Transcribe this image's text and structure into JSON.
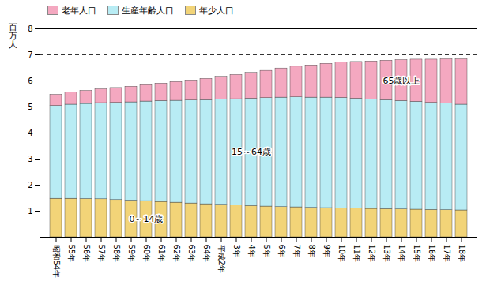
{
  "chart_data": {
    "type": "bar",
    "stacked": true,
    "y_label": "百\n万\n人",
    "categories": [
      "昭和54年",
      "55年",
      "56年",
      "57年",
      "58年",
      "59年",
      "60年",
      "61年",
      "62年",
      "63年",
      "64年",
      "平成2年",
      "3年",
      "4年",
      "5年",
      "6年",
      "7年",
      "8年",
      "9年",
      "10年",
      "11年",
      "12年",
      "13年",
      "14年",
      "15年",
      "16年",
      "17年",
      "18年"
    ],
    "series": [
      {
        "name": "年少人口",
        "color": "#f2d478",
        "values": [
          1.48,
          1.48,
          1.47,
          1.46,
          1.43,
          1.41,
          1.39,
          1.36,
          1.33,
          1.3,
          1.27,
          1.25,
          1.22,
          1.2,
          1.18,
          1.16,
          1.15,
          1.13,
          1.12,
          1.11,
          1.1,
          1.09,
          1.08,
          1.07,
          1.06,
          1.05,
          1.04,
          1.03
        ]
      },
      {
        "name": "生産年齢人口",
        "color": "#b8ecf4",
        "values": [
          3.56,
          3.61,
          3.65,
          3.69,
          3.73,
          3.77,
          3.82,
          3.87,
          3.91,
          3.95,
          3.99,
          4.04,
          4.08,
          4.12,
          4.16,
          4.2,
          4.22,
          4.23,
          4.24,
          4.24,
          4.22,
          4.2,
          4.18,
          4.16,
          4.14,
          4.11,
          4.09,
          4.06
        ]
      },
      {
        "name": "老年人口",
        "color": "#f4a8c0",
        "values": [
          0.43,
          0.47,
          0.5,
          0.53,
          0.57,
          0.6,
          0.63,
          0.67,
          0.72,
          0.77,
          0.82,
          0.87,
          0.93,
          0.99,
          1.05,
          1.12,
          1.18,
          1.24,
          1.3,
          1.36,
          1.41,
          1.46,
          1.52,
          1.57,
          1.62,
          1.66,
          1.7,
          1.74
        ]
      }
    ],
    "annotations": [
      {
        "text": "0～14歳",
        "series": "年少人口"
      },
      {
        "text": "15～64歳",
        "series": "生産年齢人口"
      },
      {
        "text": "65歳以上",
        "series": "老年人口"
      }
    ],
    "dashed_lines": [
      6,
      7
    ],
    "ylim": [
      0,
      8
    ],
    "yticks": [
      1,
      2,
      3,
      4,
      5,
      6,
      7,
      8
    ]
  }
}
